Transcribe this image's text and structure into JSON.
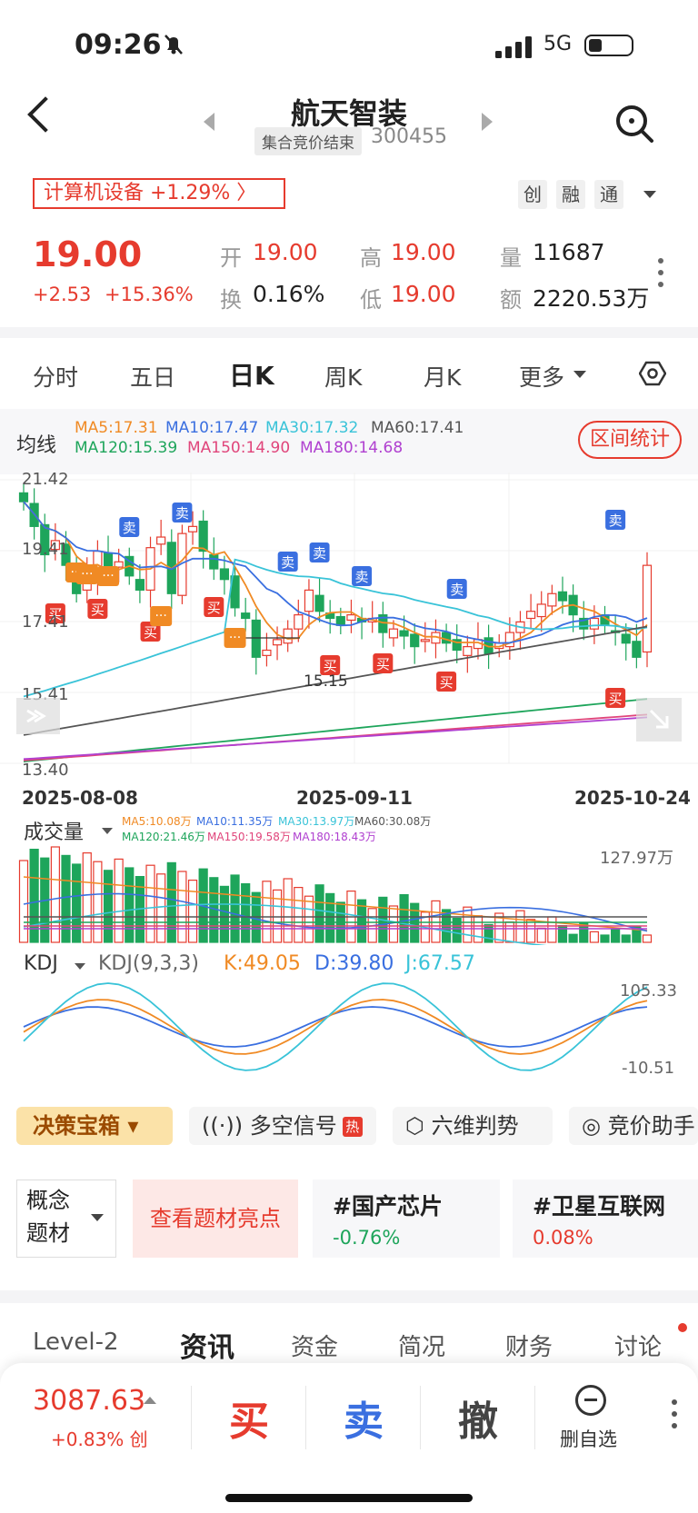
{
  "status_bar": {
    "time": "09:26",
    "network": "5G"
  },
  "header": {
    "title": "航天智装",
    "auction_status": "集合竞价结束",
    "code": "300455"
  },
  "industry": {
    "text": "计算机设备 +1.29% 〉",
    "tags": [
      "创",
      "融",
      "通"
    ]
  },
  "quote": {
    "price": "19.00",
    "change": "+2.53",
    "change_pct": "+15.36%",
    "open_label": "开",
    "open": "19.00",
    "high_label": "高",
    "high": "19.00",
    "volume_label": "量",
    "volume": "11687",
    "turnover_label": "换",
    "turnover": "0.16%",
    "low_label": "低",
    "low": "19.00",
    "amount_label": "额",
    "amount": "2220.53万"
  },
  "period_tabs": [
    "分时",
    "五日",
    "日K",
    "周K",
    "月K",
    "更多"
  ],
  "ma": {
    "label": "均线",
    "items": [
      {
        "text": "MA5:17.31",
        "color": "#f08a24"
      },
      {
        "text": "MA10:17.47",
        "color": "#3a6fe0"
      },
      {
        "text": "MA30:17.32",
        "color": "#39c3d8"
      },
      {
        "text": "MA60:17.41",
        "color": "#555555"
      },
      {
        "text": "MA120:15.39",
        "color": "#1ea55b"
      },
      {
        "text": "MA150:14.90",
        "color": "#e0457b"
      },
      {
        "text": "MA180:14.68",
        "color": "#b040d0"
      }
    ],
    "range_button": "区间统计"
  },
  "chart": {
    "y_labels": [
      "21.42",
      "19.41",
      "17.41",
      "15.41",
      "13.40"
    ],
    "dates": [
      "2025-08-08",
      "2025-09-11",
      "2025-10-24"
    ],
    "annotation": "15.15",
    "buy_label": "买",
    "sell_label": "卖"
  },
  "chart_data": {
    "type": "candlestick",
    "x_start": "2025-08-08",
    "x_end": "2025-10-24",
    "ylim": [
      13.4,
      21.42
    ],
    "closes": [
      20.8,
      20.1,
      19.3,
      19.7,
      19.0,
      18.2,
      18.8,
      19.4,
      18.9,
      19.1,
      18.7,
      18.3,
      19.5,
      19.8,
      18.2,
      19.9,
      20.1,
      19.4,
      18.9,
      18.6,
      17.8,
      17.5,
      16.4,
      16.6,
      16.9,
      17.2,
      17.6,
      18.3,
      17.7,
      17.5,
      17.3,
      17.6,
      17.4,
      17.5,
      17.1,
      17.2,
      17.0,
      16.7,
      16.9,
      17.1,
      16.8,
      16.6,
      16.7,
      16.9,
      16.5,
      16.8,
      17.1,
      17.4,
      17.7,
      17.9,
      18.2,
      18.0,
      17.6,
      17.2,
      17.5,
      17.3,
      17.1,
      16.8,
      16.4,
      19.0
    ],
    "volume_max_label": "127.97万",
    "kdj_range_labels": [
      "105.33",
      "-10.51"
    ]
  },
  "volume": {
    "label": "成交量",
    "items": [
      {
        "text": "MA5:10.08万",
        "color": "#f08a24"
      },
      {
        "text": "MA10:11.35万",
        "color": "#3a6fe0"
      },
      {
        "text": "MA30:13.97万",
        "color": "#39c3d8"
      },
      {
        "text": "MA60:30.08万",
        "color": "#555555"
      },
      {
        "text": "MA120:21.46万",
        "color": "#1ea55b"
      },
      {
        "text": "MA150:19.58万",
        "color": "#e0457b"
      },
      {
        "text": "MA180:18.43万",
        "color": "#b040d0"
      }
    ],
    "max": "127.97万"
  },
  "kdj": {
    "label": "KDJ",
    "params": "KDJ(9,3,3)",
    "k": "K:49.05",
    "d": "D:39.80",
    "j": "J:67.57",
    "max": "105.33",
    "min": "-10.51"
  },
  "tools": {
    "decision": "决策宝箱",
    "signal": "多空信号",
    "hot": "热",
    "six": "六维判势",
    "auction": "竞价助手"
  },
  "concept": {
    "label": "概念题材",
    "highlight": "查看题材亮点",
    "cards": [
      {
        "name": "#国产芯片",
        "value": "-0.76%"
      },
      {
        "name": "#卫星互联网",
        "value": "0.08%"
      }
    ]
  },
  "bottom_tabs": [
    "Level-2",
    "资讯",
    "资金",
    "简况",
    "财务",
    "讨论"
  ],
  "bottom_bar": {
    "index": "3087.63",
    "index_change": "+0.83% 创",
    "buy": "买",
    "sell": "卖",
    "cancel": "撤",
    "delete_watch": "删自选"
  }
}
